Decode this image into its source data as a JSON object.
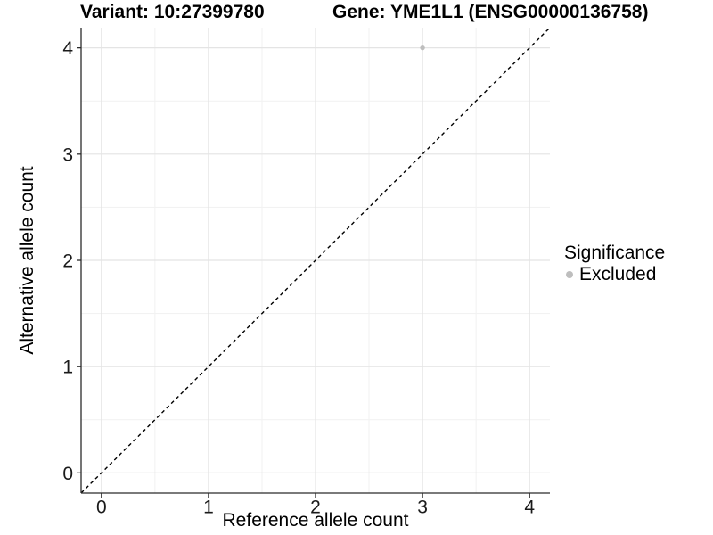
{
  "chart_data": {
    "type": "scatter",
    "title_left": "Variant: 10:27399780",
    "title_right": "Gene: YME1L1 (ENSG00000136758)",
    "xlabel": "Reference allele count",
    "ylabel": "Alternative allele count",
    "xlim": [
      -0.19,
      4.19
    ],
    "ylim": [
      -0.19,
      4.19
    ],
    "x_ticks": [
      0,
      1,
      2,
      3,
      4
    ],
    "y_ticks": [
      0,
      1,
      2,
      3,
      4
    ],
    "x_minor": [
      0.5,
      1.5,
      2.5,
      3.5
    ],
    "y_minor": [
      0.5,
      1.5,
      2.5,
      3.5
    ],
    "grid": "major+minor",
    "series": [
      {
        "name": "Excluded",
        "marker": "circle",
        "color": "#bebebe",
        "points": [
          [
            3,
            4
          ]
        ]
      }
    ],
    "reference_line": {
      "shape": "y=x",
      "style": "dashed",
      "color": "#000000"
    },
    "legend": {
      "title": "Significance",
      "position": "right",
      "items": [
        {
          "label": "Excluded",
          "color": "#bebebe"
        }
      ]
    }
  },
  "colors": {
    "background": "#ffffff",
    "grid_major": "#e4e4e4",
    "grid_minor": "#f1f1f1",
    "axis_line": "#2b2b2b",
    "tick_text": "#1a1a1a"
  }
}
